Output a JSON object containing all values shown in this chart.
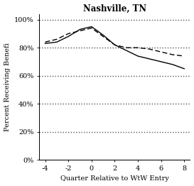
{
  "title": "Nashville, TN",
  "xlabel": "Quarter Relative to WtW Entry",
  "ylabel": "Percent Receiving Benefi",
  "xlim": [
    -4.5,
    8.5
  ],
  "ylim": [
    0,
    104
  ],
  "yticks": [
    0,
    20,
    40,
    60,
    80,
    100
  ],
  "xticks": [
    -4,
    -2,
    0,
    2,
    4,
    6,
    8
  ],
  "solid_x": [
    -4,
    -3,
    -2,
    -1,
    0,
    1,
    2,
    3,
    4,
    5,
    6,
    7,
    8
  ],
  "solid_y": [
    83,
    84,
    88,
    93,
    95,
    89,
    82,
    78,
    74,
    72,
    70,
    68,
    65
  ],
  "dashed_x": [
    -4,
    -3,
    -2,
    -1,
    0,
    1,
    2,
    3,
    4,
    5,
    6,
    7,
    8
  ],
  "dashed_y": [
    84,
    86,
    90,
    92,
    94,
    88,
    82,
    80,
    80,
    79,
    77,
    75,
    74
  ],
  "solid_color": "#000000",
  "dashed_color": "#000000",
  "background_color": "#ffffff",
  "grid_color": "#555555",
  "title_fontsize": 8.5,
  "label_fontsize": 7,
  "tick_fontsize": 7,
  "font_family": "serif"
}
